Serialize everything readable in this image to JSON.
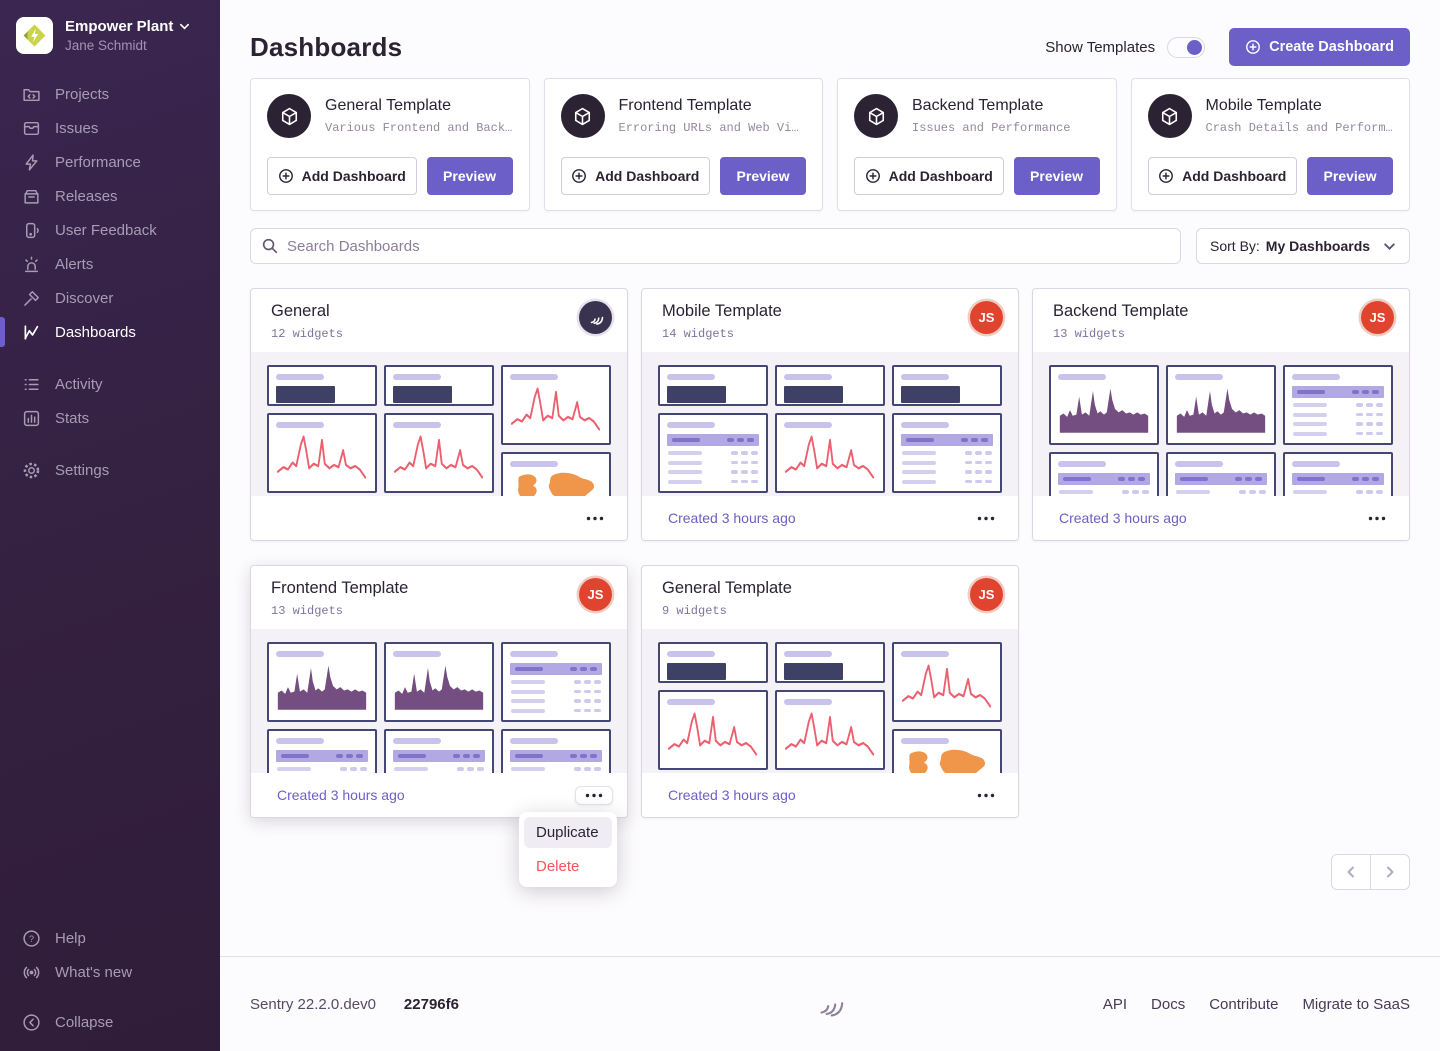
{
  "sidebar": {
    "org_name": "Empower Plant",
    "user_name": "Jane Schmidt",
    "nav": [
      {
        "id": "projects",
        "label": "Projects",
        "icon": "folder-code-icon",
        "group": 1
      },
      {
        "id": "issues",
        "label": "Issues",
        "icon": "stack-icon",
        "group": 1
      },
      {
        "id": "performance",
        "label": "Performance",
        "icon": "lightning-icon",
        "group": 1
      },
      {
        "id": "releases",
        "label": "Releases",
        "icon": "archive-icon",
        "group": 1
      },
      {
        "id": "user-feedback",
        "label": "User Feedback",
        "icon": "phone-icon",
        "group": 1
      },
      {
        "id": "alerts",
        "label": "Alerts",
        "icon": "siren-icon",
        "group": 1
      },
      {
        "id": "discover",
        "label": "Discover",
        "icon": "gavel-icon",
        "group": 1
      },
      {
        "id": "dashboards",
        "label": "Dashboards",
        "icon": "line-chart-icon",
        "group": 1,
        "active": true
      },
      {
        "id": "activity",
        "label": "Activity",
        "icon": "list-icon",
        "group": 2
      },
      {
        "id": "stats",
        "label": "Stats",
        "icon": "bar-chart-icon",
        "group": 2
      },
      {
        "id": "settings",
        "label": "Settings",
        "icon": "gear-icon",
        "group": 3
      }
    ],
    "footer_nav": [
      {
        "id": "help",
        "label": "Help",
        "icon": "question-circle-icon"
      },
      {
        "id": "whats-new",
        "label": "What's new",
        "icon": "broadcast-icon"
      },
      {
        "id": "collapse",
        "label": "Collapse",
        "icon": "chevron-left-circle-icon",
        "gap_before": true
      }
    ]
  },
  "header": {
    "title": "Dashboards",
    "show_templates_label": "Show Templates",
    "show_templates_on": true,
    "create_button": "Create Dashboard"
  },
  "templates": {
    "add_label": "Add Dashboard",
    "preview_label": "Preview",
    "cards": [
      {
        "title": "General Template",
        "description": "Various Frontend and Back…"
      },
      {
        "title": "Frontend Template",
        "description": "Erroring URLs and Web Vi…"
      },
      {
        "title": "Backend Template",
        "description": "Issues and Performance"
      },
      {
        "title": "Mobile Template",
        "description": "Crash Details and Perform…"
      }
    ]
  },
  "search": {
    "placeholder": "Search Dashboards"
  },
  "sort": {
    "label": "Sort By:",
    "value": "My Dashboards"
  },
  "dashboards": [
    {
      "title": "General",
      "widget_count": "12 widgets",
      "avatar": "sentry",
      "created": "",
      "columns": [
        [
          "bignumber",
          "line",
          "line"
        ],
        [
          "bignumber",
          "line",
          "line"
        ],
        [
          "line",
          "map"
        ]
      ]
    },
    {
      "title": "Mobile Template",
      "widget_count": "14 widgets",
      "avatar": "JS",
      "created": "Created 3 hours ago",
      "columns": [
        [
          "bignumber",
          "table",
          "table"
        ],
        [
          "bignumber",
          "line",
          "line"
        ],
        [
          "bignumber",
          "table",
          "table"
        ]
      ]
    },
    {
      "title": "Backend Template",
      "widget_count": "13 widgets",
      "avatar": "JS",
      "created": "Created 3 hours ago",
      "columns": [
        [
          "area",
          "table"
        ],
        [
          "area",
          "table"
        ],
        [
          "table",
          "table"
        ]
      ]
    },
    {
      "title": "Frontend Template",
      "widget_count": "13 widgets",
      "avatar": "JS",
      "created": "Created 3 hours ago",
      "menu_open": true,
      "columns": [
        [
          "area",
          "table"
        ],
        [
          "area",
          "table"
        ],
        [
          "table",
          "table"
        ]
      ]
    },
    {
      "title": "General Template",
      "widget_count": "9 widgets",
      "avatar": "JS",
      "created": "Created 3 hours ago",
      "columns": [
        [
          "bignumber",
          "line",
          "line"
        ],
        [
          "bignumber",
          "line",
          "line"
        ],
        [
          "line",
          "map"
        ]
      ]
    }
  ],
  "context_menu": {
    "items": [
      {
        "label": "Duplicate",
        "style": "default",
        "highlighted": true
      },
      {
        "label": "Delete",
        "style": "danger",
        "highlighted": false
      }
    ]
  },
  "footer": {
    "version": "Sentry 22.2.0.dev0",
    "build": "22796f6",
    "links": [
      "API",
      "Docs",
      "Contribute",
      "Migrate to SaaS"
    ]
  },
  "colors": {
    "accent": "#6c5fc7",
    "danger": "#f55459",
    "widget_border_navy": "#444674",
    "chart_red": "#ec5f6e",
    "chart_purple": "#744e80",
    "map_orange": "#f0964b",
    "avatar_red": "#e0442e"
  }
}
